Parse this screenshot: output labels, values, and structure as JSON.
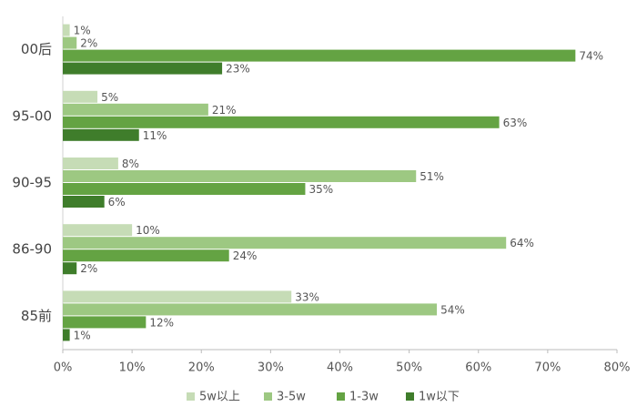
{
  "chart_data": {
    "type": "bar",
    "orientation": "horizontal",
    "categories": [
      "00后",
      "95-00",
      "90-95",
      "86-90",
      "85前"
    ],
    "series": [
      {
        "name": "5w以上",
        "color": "#c6dcb6",
        "values": [
          1,
          5,
          8,
          10,
          33
        ],
        "value_labels": [
          "1%",
          "5%",
          "8%",
          "10%",
          "33%"
        ]
      },
      {
        "name": "3-5w",
        "color": "#9dc882",
        "values": [
          2,
          21,
          51,
          64,
          54
        ],
        "value_labels": [
          "2%",
          "21%",
          "51%",
          "64%",
          "54%"
        ]
      },
      {
        "name": "1-3w",
        "color": "#64a343",
        "values": [
          74,
          63,
          35,
          24,
          12
        ],
        "value_labels": [
          "74%",
          "63%",
          "35%",
          "24%",
          "12%"
        ]
      },
      {
        "name": "1w以下",
        "color": "#3f7d2b",
        "values": [
          23,
          11,
          6,
          2,
          1
        ],
        "value_labels": [
          "23%",
          "11%",
          "6%",
          "2%",
          "1%"
        ]
      }
    ],
    "xlim": [
      0,
      80
    ],
    "xticks": [
      {
        "value": 0,
        "label": "0%"
      },
      {
        "value": 10,
        "label": "10%"
      },
      {
        "value": 20,
        "label": "20%"
      },
      {
        "value": 30,
        "label": "30%"
      },
      {
        "value": 40,
        "label": "40%"
      },
      {
        "value": 50,
        "label": "50%"
      },
      {
        "value": 60,
        "label": "60%"
      },
      {
        "value": 70,
        "label": "70%"
      },
      {
        "value": 80,
        "label": "80%"
      }
    ],
    "legend": "bottom"
  }
}
